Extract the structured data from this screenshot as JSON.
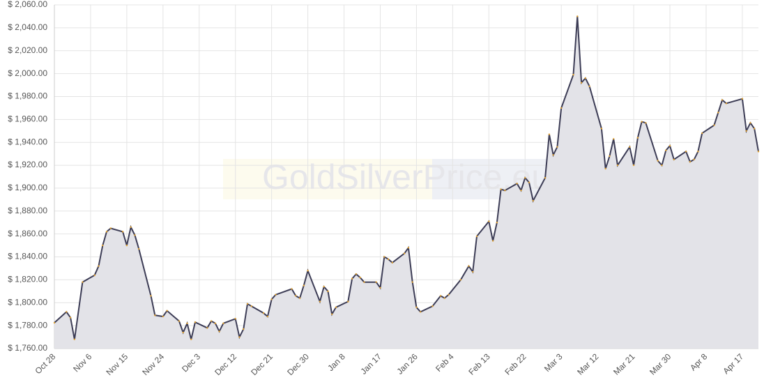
{
  "chart_data": {
    "type": "area",
    "watermark": "GoldSilverPrice.eu",
    "x": [
      "Oct 28",
      "Oct 31",
      "Nov 1",
      "Nov 2",
      "Nov 4",
      "Nov 7",
      "Nov 8",
      "Nov 9",
      "Nov 10",
      "Nov 11",
      "Nov 14",
      "Nov 15",
      "Nov 16",
      "Nov 17",
      "Nov 18",
      "Nov 21",
      "Nov 22",
      "Nov 24",
      "Nov 25",
      "Nov 28",
      "Nov 29",
      "Nov 30",
      "Dec 1",
      "Dec 2",
      "Dec 5",
      "Dec 6",
      "Dec 7",
      "Dec 8",
      "Dec 9",
      "Dec 12",
      "Dec 13",
      "Dec 14",
      "Dec 15",
      "Dec 16",
      "Dec 19",
      "Dec 20",
      "Dec 21",
      "Dec 22",
      "Dec 26",
      "Dec 27",
      "Dec 28",
      "Dec 29",
      "Dec 30",
      "Jan 2",
      "Jan 3",
      "Jan 4",
      "Jan 5",
      "Jan 6",
      "Jan 9",
      "Jan 10",
      "Jan 11",
      "Jan 12",
      "Jan 13",
      "Jan 16",
      "Jan 17",
      "Jan 18",
      "Jan 19",
      "Jan 20",
      "Jan 23",
      "Jan 24",
      "Jan 25",
      "Jan 26",
      "Jan 27",
      "Jan 30",
      "Feb 1",
      "Feb 2",
      "Feb 3",
      "Feb 6",
      "Feb 8",
      "Feb 9",
      "Feb 10",
      "Feb 13",
      "Feb 14",
      "Feb 15",
      "Feb 16",
      "Feb 17",
      "Feb 20",
      "Feb 21",
      "Feb 22",
      "Feb 23",
      "Feb 24",
      "Feb 27",
      "Feb 28",
      "Mar 1",
      "Mar 2",
      "Mar 3",
      "Mar 6",
      "Mar 7",
      "Mar 8",
      "Mar 9",
      "Mar 10",
      "Mar 13",
      "Mar 14",
      "Mar 15",
      "Mar 16",
      "Mar 17",
      "Mar 20",
      "Mar 21",
      "Mar 22",
      "Mar 23",
      "Mar 24",
      "Mar 27",
      "Mar 28",
      "Mar 29",
      "Mar 30",
      "Mar 31",
      "Apr 3",
      "Apr 4",
      "Apr 5",
      "Apr 6",
      "Apr 7",
      "Apr 10",
      "Apr 11",
      "Apr 12",
      "Apr 13",
      "Apr 17",
      "Apr 18",
      "Apr 19",
      "Apr 20",
      "Apr 21"
    ],
    "values": [
      1782.5,
      1792,
      1787,
      1768,
      1818,
      1824,
      1832,
      1850,
      1862,
      1865,
      1862,
      1850,
      1866,
      1859,
      1847,
      1806,
      1789,
      1788,
      1793,
      1784,
      1774,
      1782,
      1768,
      1783,
      1778,
      1784,
      1782,
      1775,
      1782,
      1786,
      1770,
      1777,
      1799,
      1797,
      1791,
      1788,
      1803,
      1807,
      1812,
      1806,
      1804,
      1815,
      1828,
      1801,
      1814,
      1810,
      1790,
      1796,
      1801,
      1821,
      1825,
      1822,
      1818,
      1818,
      1813,
      1840,
      1838,
      1835,
      1843,
      1848,
      1818,
      1796,
      1792,
      1797,
      1806,
      1804,
      1807,
      1820,
      1832,
      1827,
      1858,
      1871,
      1854,
      1870,
      1899,
      1898,
      1904,
      1898,
      1909,
      1905,
      1889,
      1909,
      1947,
      1929,
      1936,
      1970,
      1999,
      2050,
      1992,
      1996,
      1989,
      1952,
      1917,
      1928,
      1943,
      1920,
      1936,
      1920,
      1944,
      1958,
      1957,
      1924,
      1920,
      1933,
      1937,
      1925,
      1932,
      1923,
      1925,
      1932,
      1948,
      1955,
      1966,
      1977,
      1974,
      1978,
      1950,
      1957,
      1952,
      1932
    ],
    "color": "#3c3c55",
    "fill": "#e3e3e8",
    "marker_color": "#e0a030",
    "xlim": [
      "Oct 28",
      "Apr 21"
    ],
    "xticks": [
      "Oct 28",
      "Nov 6",
      "Nov 15",
      "Nov 24",
      "Dec 3",
      "Dec 12",
      "Dec 21",
      "Dec 30",
      "Jan 8",
      "Jan 17",
      "Jan 26",
      "Feb 4",
      "Feb 13",
      "Feb 22",
      "Mar 3",
      "Mar 12",
      "Mar 21",
      "Mar 30",
      "Apr 8",
      "Apr 17"
    ],
    "ylim": [
      1760,
      2060
    ],
    "yticks": [
      {
        "value": 1760,
        "label": "$ 1,760.00"
      },
      {
        "value": 1780,
        "label": "$ 1,780.00"
      },
      {
        "value": 1800,
        "label": "$ 1,800.00"
      },
      {
        "value": 1820,
        "label": "$ 1,820.00"
      },
      {
        "value": 1840,
        "label": "$ 1,840.00"
      },
      {
        "value": 1860,
        "label": "$ 1,860.00"
      },
      {
        "value": 1880,
        "label": "$ 1,880.00"
      },
      {
        "value": 1900,
        "label": "$ 1,900.00"
      },
      {
        "value": 1920,
        "label": "$ 1,920.00"
      },
      {
        "value": 1940,
        "label": "$ 1,940.00"
      },
      {
        "value": 1960,
        "label": "$ 1,960.00"
      },
      {
        "value": 1980,
        "label": "$ 1,980.00"
      },
      {
        "value": 2000,
        "label": "$ 2,000.00"
      },
      {
        "value": 2020,
        "label": "$ 2,020.00"
      },
      {
        "value": 2040,
        "label": "$ 2,040.00"
      },
      {
        "value": 2060,
        "label": "$ 2,060.00"
      }
    ],
    "grid": true
  }
}
